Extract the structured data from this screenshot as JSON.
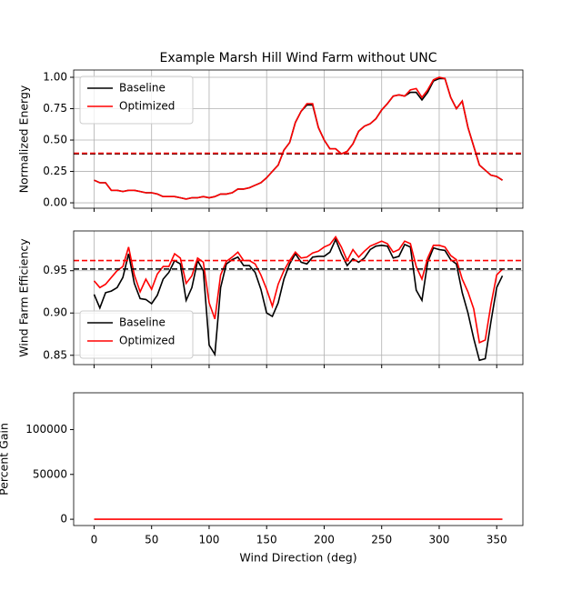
{
  "chart_data": [
    {
      "type": "line",
      "title": "Example Marsh Hill Wind Farm without UNC",
      "ylabel": "Normalized Energy",
      "x": [
        0,
        5,
        10,
        15,
        20,
        25,
        30,
        35,
        40,
        45,
        50,
        55,
        60,
        65,
        70,
        75,
        80,
        85,
        90,
        95,
        100,
        105,
        110,
        115,
        120,
        125,
        130,
        135,
        140,
        145,
        150,
        155,
        160,
        165,
        170,
        175,
        180,
        185,
        190,
        195,
        200,
        205,
        210,
        215,
        220,
        225,
        230,
        235,
        240,
        245,
        250,
        255,
        260,
        265,
        270,
        275,
        280,
        285,
        290,
        295,
        300,
        305,
        310,
        315,
        320,
        325,
        330,
        335,
        340,
        345,
        350,
        355
      ],
      "series": [
        {
          "name": "Baseline",
          "color": "#000000",
          "values": [
            0.18,
            0.16,
            0.16,
            0.1,
            0.1,
            0.09,
            0.1,
            0.1,
            0.09,
            0.08,
            0.08,
            0.07,
            0.05,
            0.05,
            0.05,
            0.04,
            0.03,
            0.04,
            0.04,
            0.05,
            0.04,
            0.05,
            0.07,
            0.07,
            0.08,
            0.11,
            0.11,
            0.12,
            0.14,
            0.16,
            0.2,
            0.25,
            0.3,
            0.42,
            0.48,
            0.64,
            0.73,
            0.78,
            0.78,
            0.6,
            0.5,
            0.43,
            0.43,
            0.39,
            0.41,
            0.47,
            0.57,
            0.61,
            0.63,
            0.67,
            0.74,
            0.79,
            0.85,
            0.86,
            0.85,
            0.88,
            0.88,
            0.82,
            0.88,
            0.97,
            0.99,
            0.99,
            0.84,
            0.75,
            0.81,
            0.6,
            0.45,
            0.3,
            0.26,
            0.22,
            0.21,
            0.18
          ]
        },
        {
          "name": "Optimized",
          "color": "#ff0000",
          "values": [
            0.18,
            0.16,
            0.16,
            0.1,
            0.1,
            0.09,
            0.1,
            0.1,
            0.09,
            0.08,
            0.08,
            0.07,
            0.05,
            0.05,
            0.05,
            0.04,
            0.03,
            0.04,
            0.04,
            0.05,
            0.04,
            0.05,
            0.07,
            0.07,
            0.08,
            0.11,
            0.11,
            0.12,
            0.14,
            0.16,
            0.2,
            0.25,
            0.3,
            0.42,
            0.48,
            0.64,
            0.73,
            0.79,
            0.79,
            0.6,
            0.5,
            0.43,
            0.43,
            0.39,
            0.41,
            0.47,
            0.57,
            0.61,
            0.63,
            0.67,
            0.74,
            0.79,
            0.85,
            0.86,
            0.85,
            0.9,
            0.91,
            0.84,
            0.9,
            0.98,
            1.0,
            0.99,
            0.84,
            0.75,
            0.81,
            0.6,
            0.45,
            0.3,
            0.26,
            0.22,
            0.21,
            0.18
          ]
        }
      ],
      "hlines": [
        {
          "value": 0.39,
          "color": "#000000"
        },
        {
          "value": 0.395,
          "color": "#ff0000"
        }
      ],
      "xlim": [
        -17.75,
        372.75
      ],
      "xticks": [
        0,
        50,
        100,
        150,
        200,
        250,
        300,
        350
      ],
      "ylim": [
        -0.043,
        1.058
      ],
      "yticks": [
        {
          "value": 0,
          "label": "0.00"
        },
        0.25,
        {
          "value": 0.5,
          "label": "0.50"
        },
        0.75,
        {
          "value": 1,
          "label": "1.00"
        }
      ],
      "grid": true,
      "legend": "upper left"
    },
    {
      "type": "line",
      "ylabel": "Wind Farm Efficiency",
      "x": [
        0,
        5,
        10,
        15,
        20,
        25,
        30,
        35,
        40,
        45,
        50,
        55,
        60,
        65,
        70,
        75,
        80,
        85,
        90,
        95,
        100,
        105,
        110,
        115,
        120,
        125,
        130,
        135,
        140,
        145,
        150,
        155,
        160,
        165,
        170,
        175,
        180,
        185,
        190,
        195,
        200,
        205,
        210,
        215,
        220,
        225,
        230,
        235,
        240,
        245,
        250,
        255,
        260,
        265,
        270,
        275,
        280,
        285,
        290,
        295,
        300,
        305,
        310,
        315,
        320,
        325,
        330,
        335,
        340,
        345,
        350,
        355
      ],
      "series": [
        {
          "name": "Baseline",
          "color": "#000000",
          "values": [
            0.922,
            0.906,
            0.924,
            0.926,
            0.93,
            0.942,
            0.97,
            0.935,
            0.917,
            0.916,
            0.911,
            0.921,
            0.94,
            0.948,
            0.962,
            0.958,
            0.915,
            0.93,
            0.962,
            0.95,
            0.862,
            0.851,
            0.93,
            0.958,
            0.963,
            0.966,
            0.956,
            0.956,
            0.948,
            0.928,
            0.9,
            0.896,
            0.912,
            0.94,
            0.958,
            0.97,
            0.96,
            0.958,
            0.966,
            0.967,
            0.967,
            0.972,
            0.987,
            0.97,
            0.956,
            0.964,
            0.96,
            0.965,
            0.975,
            0.979,
            0.98,
            0.979,
            0.965,
            0.967,
            0.981,
            0.978,
            0.927,
            0.915,
            0.96,
            0.977,
            0.975,
            0.974,
            0.963,
            0.958,
            0.924,
            0.9,
            0.87,
            0.844,
            0.846,
            0.89,
            0.93,
            0.944
          ]
        },
        {
          "name": "Optimized",
          "color": "#ff0000",
          "values": [
            0.938,
            0.93,
            0.934,
            0.942,
            0.95,
            0.955,
            0.978,
            0.945,
            0.925,
            0.94,
            0.928,
            0.946,
            0.955,
            0.955,
            0.97,
            0.965,
            0.935,
            0.944,
            0.965,
            0.96,
            0.912,
            0.893,
            0.945,
            0.961,
            0.966,
            0.972,
            0.962,
            0.962,
            0.958,
            0.945,
            0.928,
            0.908,
            0.934,
            0.95,
            0.962,
            0.972,
            0.965,
            0.966,
            0.971,
            0.973,
            0.978,
            0.981,
            0.99,
            0.978,
            0.962,
            0.975,
            0.966,
            0.973,
            0.979,
            0.982,
            0.985,
            0.982,
            0.972,
            0.975,
            0.985,
            0.982,
            0.955,
            0.94,
            0.965,
            0.98,
            0.98,
            0.978,
            0.968,
            0.963,
            0.94,
            0.925,
            0.905,
            0.865,
            0.868,
            0.91,
            0.945,
            0.952
          ]
        }
      ],
      "hlines": [
        {
          "value": 0.952,
          "color": "#000000"
        },
        {
          "value": 0.962,
          "color": "#ff0000"
        }
      ],
      "xlim": [
        -17.75,
        372.75
      ],
      "xticks": [
        0,
        50,
        100,
        150,
        200,
        250,
        300,
        350
      ],
      "ylim": [
        0.839,
        0.997
      ],
      "yticks": [
        0.85,
        {
          "value": 0.9,
          "label": "0.90"
        },
        0.95
      ],
      "grid": true,
      "legend": "lower left"
    },
    {
      "type": "line",
      "ylabel": "Percent Gain",
      "xlabel": "Wind Direction (deg)",
      "x": [
        0,
        5,
        10,
        15,
        20,
        25,
        30,
        35,
        40,
        45,
        50,
        55,
        60,
        65,
        70,
        75,
        80,
        85,
        90,
        95,
        100,
        105,
        110,
        115,
        120,
        125,
        130,
        135,
        140,
        145,
        150,
        155,
        160,
        165,
        170,
        175,
        180,
        185,
        190,
        195,
        200,
        205,
        210,
        215,
        220,
        225,
        230,
        235,
        240,
        245,
        250,
        255,
        260,
        265,
        270,
        275,
        280,
        285,
        290,
        295,
        300,
        305,
        310,
        315,
        320,
        325,
        330,
        335,
        340,
        345,
        350,
        355
      ],
      "series": [
        {
          "color": "#ff0000",
          "values": [
            0,
            0,
            0,
            0,
            0,
            0,
            0,
            0,
            0,
            0,
            0,
            0,
            0,
            0,
            0,
            0,
            0,
            0,
            0,
            0,
            0,
            0,
            0,
            0,
            0,
            0,
            0,
            0,
            0,
            0,
            0,
            0,
            0,
            0,
            0,
            0,
            0,
            0,
            0,
            0,
            0,
            0,
            0,
            0,
            0,
            0,
            0,
            0,
            0,
            0,
            0,
            0,
            0,
            0,
            0,
            0,
            0,
            0,
            0,
            0,
            0,
            0,
            0,
            0,
            0,
            0,
            0,
            0,
            0,
            0,
            0,
            0
          ]
        }
      ],
      "xlim": [
        -17.75,
        372.75
      ],
      "xticks": [
        0,
        50,
        100,
        150,
        200,
        250,
        300,
        350
      ],
      "xticklabels": true,
      "ylim": [
        -7000,
        141000
      ],
      "yticks": [
        0,
        50000,
        100000
      ],
      "grid": false
    }
  ]
}
